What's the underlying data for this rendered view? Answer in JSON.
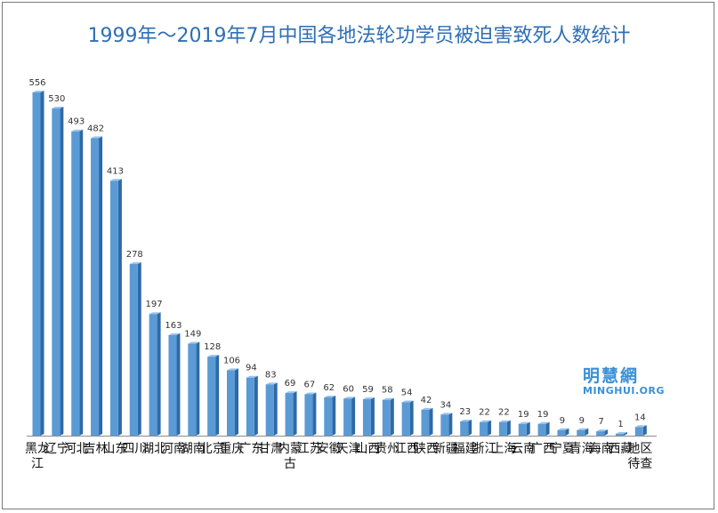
{
  "chart_data": {
    "type": "bar",
    "title": "1999年～2019年7月中国各地法轮功学员被迫害致死人数统计",
    "categories": [
      "黑龙江",
      "辽宁",
      "河北",
      "吉林",
      "山东",
      "四川",
      "湖北",
      "河南",
      "湖南",
      "北京",
      "重庆",
      "广东",
      "甘肃",
      "内蒙古",
      "江苏",
      "安徽",
      "天津",
      "山西",
      "贵州",
      "江西",
      "陕西",
      "新疆",
      "福建",
      "浙江",
      "上海",
      "云南",
      "广西",
      "宁夏",
      "青海",
      "海南",
      "西藏",
      "地区待查"
    ],
    "values": [
      556,
      530,
      493,
      482,
      413,
      278,
      197,
      163,
      149,
      128,
      106,
      94,
      83,
      69,
      67,
      62,
      60,
      59,
      58,
      54,
      42,
      34,
      23,
      22,
      22,
      19,
      19,
      9,
      9,
      7,
      1,
      14
    ],
    "ylim": [
      0,
      556
    ],
    "grid": false,
    "legend": "none",
    "colors": {
      "bar_front": "#5b9bd5",
      "bar_side": "#2e6aa6",
      "bar_top": "#9cc3ea",
      "title": "#2f6fb5",
      "logo": "#3a8fd6"
    }
  },
  "logo": {
    "cn": "明慧網",
    "en": "MINGHUI.ORG"
  }
}
